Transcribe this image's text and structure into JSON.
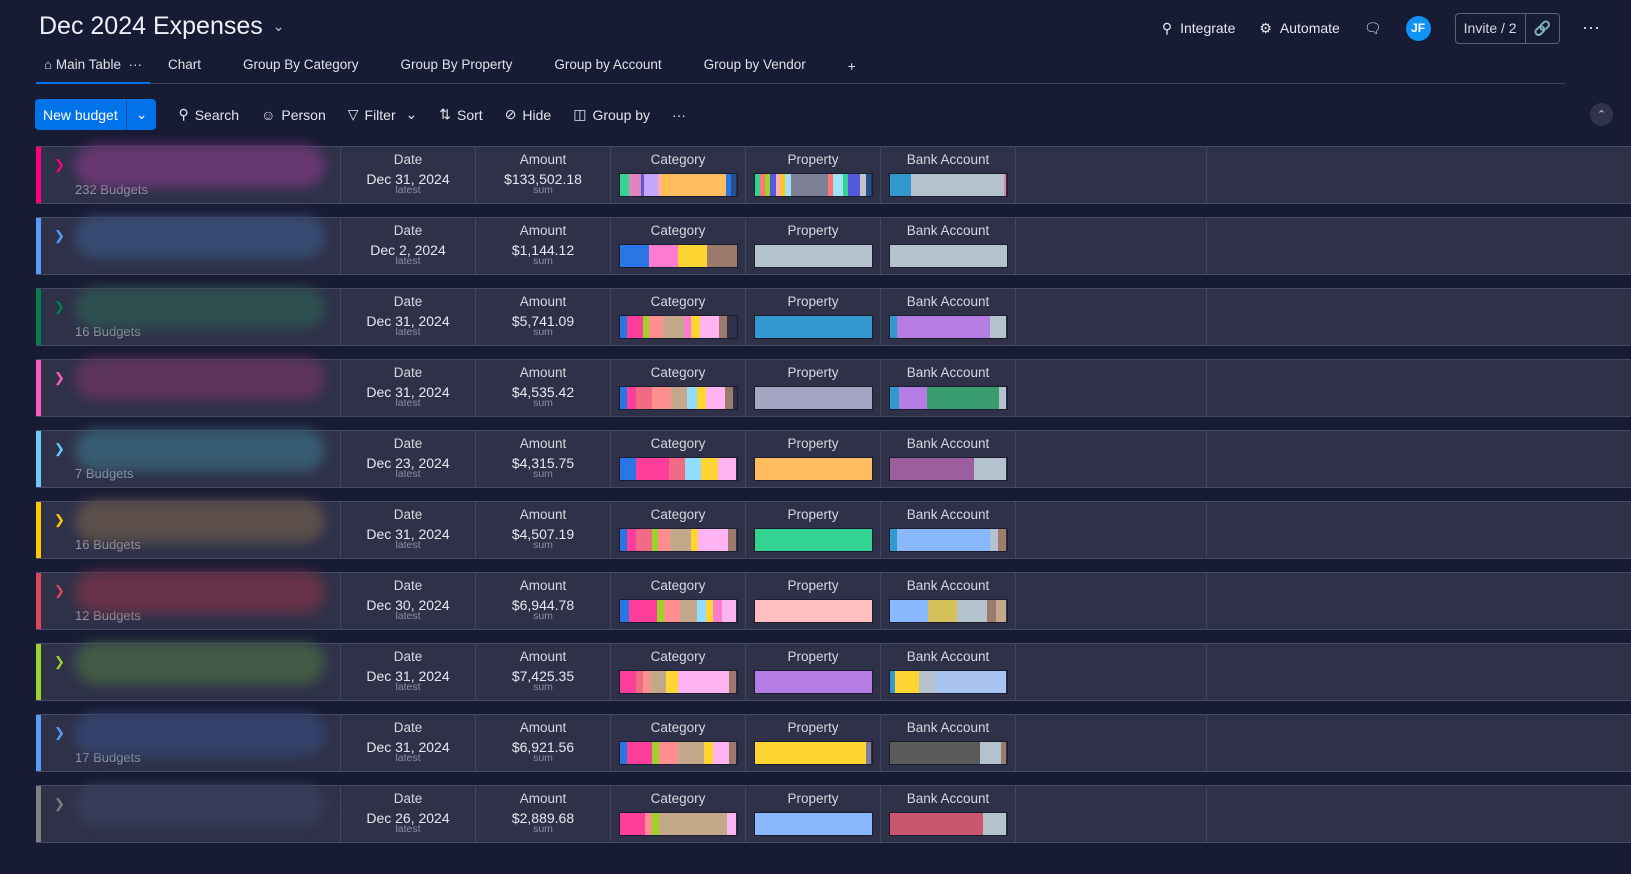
{
  "header": {
    "title": "Dec 2024 Expenses",
    "integrate": "Integrate",
    "automate": "Automate",
    "avatar": "JF",
    "invite": "Invite / 2"
  },
  "tabs": [
    "Main Table",
    "Chart",
    "Group By Category",
    "Group By Property",
    "Group by Account",
    "Group by Vendor",
    "+"
  ],
  "toolbar": {
    "new": "New budget",
    "search": "Search",
    "person": "Person",
    "filter": "Filter",
    "sort": "Sort",
    "hide": "Hide",
    "groupby": "Group by"
  },
  "columns": {
    "date": "Date",
    "amount": "Amount",
    "category": "Category",
    "property": "Property",
    "bank": "Bank Account",
    "latest": "latest",
    "sum": "sum"
  },
  "groups": [
    {
      "color": "#ff007f",
      "blur": "#7a3a80",
      "count": "232 Budgets",
      "date": "Dec 31, 2024",
      "amount": "$133,502.18",
      "cat": [
        [
          "#33d391",
          8
        ],
        [
          "#e484bd",
          10
        ],
        [
          "#5b5bd6",
          3
        ],
        [
          "#c4a7fa",
          12
        ],
        [
          "#ffadad",
          4
        ],
        [
          "#ffcb00",
          2
        ],
        [
          "#ffbd5f",
          52
        ],
        [
          "#2b76e5",
          4
        ],
        [
          "#225091",
          5
        ]
      ],
      "prop": [
        [
          "#33d391",
          5
        ],
        [
          "#ff7575",
          4
        ],
        [
          "#9cd326",
          4
        ],
        [
          "#5559df",
          5
        ],
        [
          "#ffadad",
          5
        ],
        [
          "#ffcb00",
          3
        ],
        [
          "#a1e3f6",
          5
        ],
        [
          "#7e8196",
          32
        ],
        [
          "#ff7575",
          4
        ],
        [
          "#a1e3f6",
          9
        ],
        [
          "#33d391",
          4
        ],
        [
          "#5559df",
          10
        ],
        [
          "#c4c4c4",
          5
        ],
        [
          "#225091",
          5
        ]
      ],
      "bank": [
        [
          "#3199ce",
          18
        ],
        [
          "#b3c2cc",
          80
        ],
        [
          "#e27fa0",
          2
        ]
      ]
    },
    {
      "color": "#579bfc",
      "blur": "#3a5580",
      "count": "",
      "date": "Dec 2, 2024",
      "amount": "$1,144.12",
      "cat": [
        [
          "#2b76e5",
          25
        ],
        [
          "#ff7bd0",
          25
        ],
        [
          "#ffd533",
          25
        ],
        [
          "#9d7b6c",
          25
        ]
      ],
      "prop": [
        [
          "#b3c2cc",
          100
        ]
      ],
      "bank": [
        [
          "#b3c2cc",
          100
        ]
      ]
    },
    {
      "color": "#037f4c",
      "blur": "#2e5a52",
      "count": "16 Budgets",
      "date": "Dec 31, 2024",
      "amount": "$5,741.09",
      "cat": [
        [
          "#2b76e5",
          6
        ],
        [
          "#ff3d9a",
          14
        ],
        [
          "#9cd326",
          5
        ],
        [
          "#ff8f8f",
          12
        ],
        [
          "#c4a88a",
          18
        ],
        [
          "#ff7bd0",
          6
        ],
        [
          "#ffd533",
          8
        ],
        [
          "#ffb4f1",
          16
        ],
        [
          "#9d7b6c",
          7
        ]
      ],
      "prop": [
        [
          "#3199ce",
          100
        ]
      ],
      "bank": [
        [
          "#3199ce",
          6
        ],
        [
          "#b57de4",
          80
        ],
        [
          "#b3c2cc",
          14
        ]
      ]
    },
    {
      "color": "#ff5ac4",
      "blur": "#6e3560",
      "count": "",
      "date": "Dec 31, 2024",
      "amount": "$4,535.42",
      "cat": [
        [
          "#2b76e5",
          6
        ],
        [
          "#ff3d9a",
          8
        ],
        [
          "#f06b84",
          14
        ],
        [
          "#ff8f8f",
          16
        ],
        [
          "#c4a88a",
          14
        ],
        [
          "#91dcff",
          8
        ],
        [
          "#ffd533",
          8
        ],
        [
          "#ffb4f1",
          16
        ],
        [
          "#9d7b6c",
          7
        ]
      ],
      "prop": [
        [
          "#a6a6c4",
          100
        ]
      ],
      "bank": [
        [
          "#3199ce",
          8
        ],
        [
          "#b57de4",
          24
        ],
        [
          "#3a9d70",
          62
        ],
        [
          "#b3c2cc",
          6
        ]
      ]
    },
    {
      "color": "#66ccff",
      "blur": "#3a6a80",
      "count": "7 Budgets",
      "date": "Dec 23, 2024",
      "amount": "$4,315.75",
      "cat": [
        [
          "#2b76e5",
          14
        ],
        [
          "#ff3d9a",
          28
        ],
        [
          "#f06b84",
          14
        ],
        [
          "#91dcff",
          14
        ],
        [
          "#ffd533",
          14
        ],
        [
          "#ffb4f1",
          16
        ]
      ],
      "prop": [
        [
          "#ffbd5f",
          100
        ]
      ],
      "bank": [
        [
          "#9d5e9e",
          72
        ],
        [
          "#b3c2cc",
          28
        ]
      ]
    },
    {
      "color": "#ffcb00",
      "blur": "#6b5a4a",
      "count": "16 Budgets",
      "date": "Dec 31, 2024",
      "amount": "$4,507.19",
      "cat": [
        [
          "#2b76e5",
          6
        ],
        [
          "#ff3d9a",
          8
        ],
        [
          "#f06b84",
          14
        ],
        [
          "#9cd326",
          5
        ],
        [
          "#ff8f8f",
          10
        ],
        [
          "#c4a88a",
          18
        ],
        [
          "#ffd533",
          6
        ],
        [
          "#ffb4f1",
          26
        ],
        [
          "#9d7b6c",
          7
        ]
      ],
      "prop": [
        [
          "#33d391",
          100
        ]
      ],
      "bank": [
        [
          "#3199ce",
          6
        ],
        [
          "#8ab8ff",
          80
        ],
        [
          "#b3c2cc",
          7
        ],
        [
          "#9d7b6c",
          7
        ]
      ]
    },
    {
      "color": "#e2445c",
      "blur": "#7a3448",
      "count": "12 Budgets",
      "date": "Dec 30, 2024",
      "amount": "$6,944.78",
      "cat": [
        [
          "#2b76e5",
          8
        ],
        [
          "#ff3d9a",
          24
        ],
        [
          "#9cd326",
          6
        ],
        [
          "#ff8f8f",
          14
        ],
        [
          "#c4a88a",
          14
        ],
        [
          "#91dcff",
          8
        ],
        [
          "#ffd533",
          6
        ],
        [
          "#ff7bd0",
          8
        ],
        [
          "#ffb4f1",
          12
        ]
      ],
      "prop": [
        [
          "#ffbfbf",
          100
        ]
      ],
      "bank": [
        [
          "#8ab8ff",
          33
        ],
        [
          "#d6c05a",
          25
        ],
        [
          "#b3c2cc",
          25
        ],
        [
          "#9d7b6c",
          8
        ],
        [
          "#c4a88a",
          9
        ]
      ]
    },
    {
      "color": "#9cd326",
      "blur": "#476a45",
      "count": "",
      "date": "Dec 31, 2024",
      "amount": "$7,425.35",
      "cat": [
        [
          "#ff3d9a",
          14
        ],
        [
          "#f06b84",
          6
        ],
        [
          "#ff8f8f",
          6
        ],
        [
          "#c4a88a",
          14
        ],
        [
          "#ffd533",
          10
        ],
        [
          "#ffb4f1",
          44
        ],
        [
          "#9d7b6c",
          6
        ]
      ],
      "prop": [
        [
          "#b57de4",
          100
        ]
      ],
      "bank": [
        [
          "#3199ce",
          5
        ],
        [
          "#ffd533",
          20
        ],
        [
          "#b3c2cc",
          15
        ],
        [
          "#a9c4f0",
          60
        ]
      ]
    },
    {
      "color": "#579bfc",
      "blur": "#354a78",
      "count": "17 Budgets",
      "date": "Dec 31, 2024",
      "amount": "$6,921.56",
      "cat": [
        [
          "#2b76e5",
          6
        ],
        [
          "#ff3d9a",
          22
        ],
        [
          "#9cd326",
          6
        ],
        [
          "#ff8f8f",
          16
        ],
        [
          "#c4a88a",
          22
        ],
        [
          "#ffd533",
          8
        ],
        [
          "#ffb4f1",
          14
        ],
        [
          "#9d7b6c",
          6
        ]
      ],
      "prop": [
        [
          "#ffd533",
          95
        ],
        [
          "#7e8196",
          5
        ]
      ],
      "bank": [
        [
          "#5a5a5a",
          77
        ],
        [
          "#b3c2cc",
          18
        ],
        [
          "#9d7b6c",
          5
        ]
      ]
    },
    {
      "color": "#808080",
      "blur": "#3c4060",
      "count": "",
      "date": "Dec 26, 2024",
      "amount": "$2,889.68",
      "cat": [
        [
          "#ff3d9a",
          22
        ],
        [
          "#ff8f8f",
          6
        ],
        [
          "#9cd326",
          6
        ],
        [
          "#c4a88a",
          58
        ],
        [
          "#ffb4f1",
          8
        ]
      ],
      "prop": [
        [
          "#8ab8ff",
          100
        ]
      ],
      "bank": [
        [
          "#c9566c",
          80
        ],
        [
          "#b3c2cc",
          20
        ]
      ]
    }
  ]
}
